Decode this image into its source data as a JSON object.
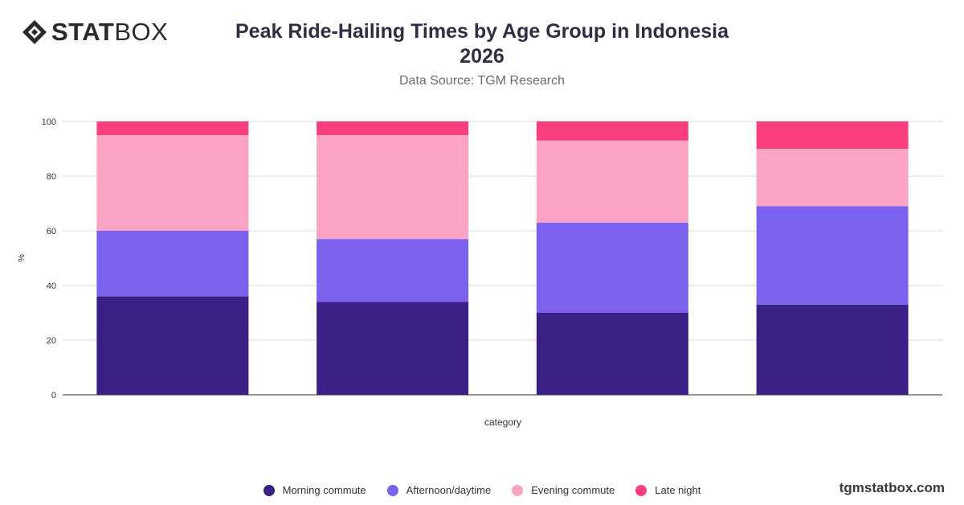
{
  "brand": {
    "logo_text_bold": "STAT",
    "logo_text_light": "BOX",
    "footer": "tgmstatbox.com"
  },
  "header": {
    "title": "Peak Ride-Hailing Times by Age Group in Indonesia\n2026",
    "subtitle": "Data Source: TGM Research"
  },
  "colors": {
    "Morning commute": "#3a1f85",
    "Afternoon/daytime": "#7b61ee",
    "Evening commute": "#fba3c4",
    "Late night": "#fb3f7e"
  },
  "chart_data": {
    "type": "bar",
    "stacked": true,
    "categories": [
      "",
      "",
      "",
      ""
    ],
    "series": [
      {
        "name": "Morning commute",
        "values": [
          36,
          34,
          30,
          33
        ]
      },
      {
        "name": "Afternoon/daytime",
        "values": [
          24,
          23,
          33,
          36
        ]
      },
      {
        "name": "Evening commute",
        "values": [
          35,
          38,
          30,
          21
        ]
      },
      {
        "name": "Late night",
        "values": [
          5,
          5,
          7,
          10
        ]
      }
    ],
    "xlabel": "category",
    "ylabel": "%",
    "ylim": [
      0,
      100
    ],
    "yticks": [
      0,
      20,
      40,
      60,
      80,
      100
    ],
    "grid": true,
    "legend_position": "bottom"
  }
}
